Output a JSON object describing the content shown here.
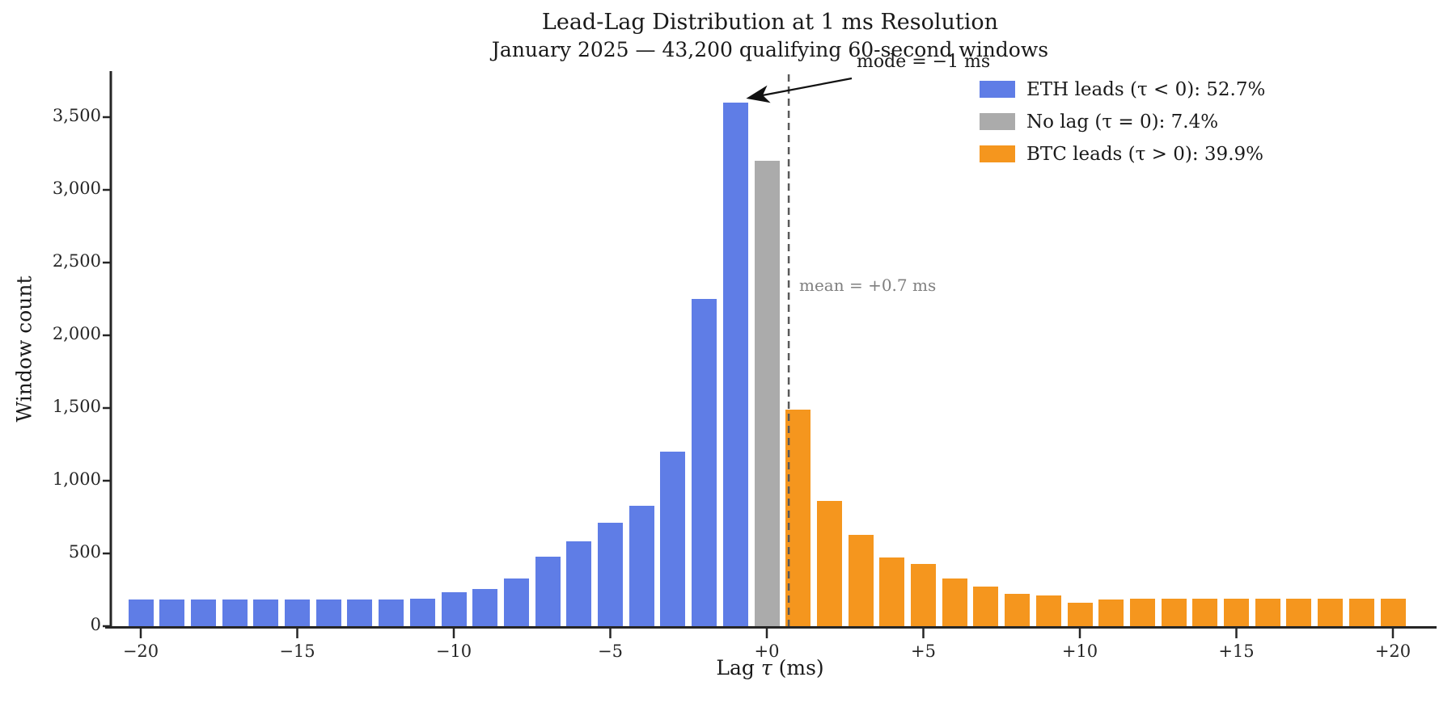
{
  "title": "Lead-Lag Distribution at 1 ms Resolution",
  "subtitle": "January 2025 — 43,200 qualifying 60-second windows",
  "axes": {
    "ylabel": "Window count",
    "xlabel_word": "Lag",
    "xlabel_symbol": "τ",
    "xlabel_unit": "(ms)",
    "xtick_values": [
      -20,
      -15,
      -10,
      -5,
      0,
      5,
      10,
      15,
      20
    ],
    "xtick_labels": [
      "−20",
      "−15",
      "−10",
      "−5",
      "+0",
      "+5",
      "+10",
      "+15",
      "+20"
    ],
    "ytick_values": [
      0,
      500,
      1000,
      1500,
      2000,
      2500,
      3000,
      3500
    ],
    "ytick_labels": [
      "0",
      "500",
      "1,000",
      "1,500",
      "2,000",
      "2,500",
      "3,000",
      "3,500"
    ]
  },
  "legend": {
    "items": [
      {
        "label": "ETH leads (τ < 0): 52.7%",
        "color_key": "eth"
      },
      {
        "label": "No lag (τ = 0): 7.4%",
        "color_key": "nolag"
      },
      {
        "label": "BTC leads (τ > 0): 39.9%",
        "color_key": "btc"
      }
    ]
  },
  "annotations": {
    "mode": "mode = −1 ms",
    "mean": "mean = +0.7 ms"
  },
  "colors": {
    "eth": "#5F7DE6",
    "nolag": "#ABABAB",
    "btc": "#F5961E",
    "axis": "#262626",
    "mean_line": "#595959",
    "mean_text": "#7f7f7f",
    "arrow": "#111111"
  },
  "chart_data": {
    "type": "bar",
    "title": "Lead-Lag Distribution at 1 ms Resolution",
    "subtitle": "January 2025 — 43,200 qualifying 60-second windows",
    "xlabel": "Lag τ (ms)",
    "ylabel": "Window count",
    "x": [
      -20,
      -19,
      -18,
      -17,
      -16,
      -15,
      -14,
      -13,
      -12,
      -11,
      -10,
      -9,
      -8,
      -7,
      -6,
      -5,
      -4,
      -3,
      -2,
      -1,
      0,
      1,
      2,
      3,
      4,
      5,
      6,
      7,
      8,
      9,
      10,
      11,
      12,
      13,
      14,
      15,
      16,
      17,
      18,
      19,
      20
    ],
    "values": [
      185,
      185,
      185,
      185,
      185,
      185,
      185,
      185,
      185,
      190,
      235,
      255,
      330,
      480,
      585,
      710,
      830,
      1200,
      2250,
      3600,
      3200,
      1490,
      860,
      630,
      475,
      430,
      330,
      270,
      220,
      210,
      160,
      185,
      190,
      190,
      190,
      190,
      190,
      190,
      190,
      190,
      190
    ],
    "series": [
      {
        "name": "ETH leads (τ < 0)",
        "tau_range": [
          -20,
          -1
        ],
        "share_pct": 52.7,
        "color": "#5F7DE6"
      },
      {
        "name": "No lag (τ = 0)",
        "tau_range": [
          0,
          0
        ],
        "share_pct": 7.4,
        "color": "#ABABAB"
      },
      {
        "name": "BTC leads (τ > 0)",
        "tau_range": [
          1,
          20
        ],
        "share_pct": 39.9,
        "color": "#F5961E"
      }
    ],
    "xlim": [
      -21.5,
      21.5
    ],
    "ylim": [
      0,
      3700
    ],
    "grid": false,
    "legend_position": "upper right",
    "mean_ms": 0.7,
    "mode_ms": -1,
    "mode_count": 3600
  }
}
